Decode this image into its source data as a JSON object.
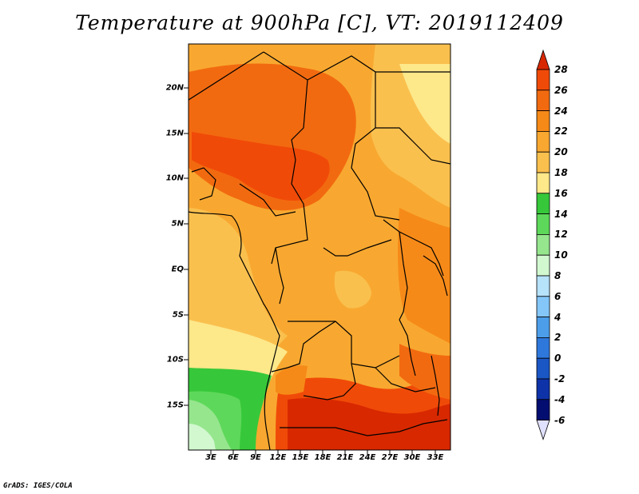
{
  "title": "Temperature at 900hPa [C], VT: 2019112409",
  "credit": "GrADS: IGES/COLA",
  "map": {
    "variable": "Temperature at 900hPa",
    "unit": "C",
    "valid_time": "2019112409",
    "region": "Central and Southern Africa",
    "lon_range": [
      0,
      35
    ],
    "lat_range": [
      -20,
      24
    ],
    "lat_ticks": [
      "20N",
      "15N",
      "10N",
      "5N",
      "EQ",
      "5S",
      "10S",
      "15S"
    ],
    "lon_ticks": [
      "3E",
      "6E",
      "9E",
      "12E",
      "15E",
      "18E",
      "21E",
      "24E",
      "27E",
      "30E",
      "33E"
    ]
  },
  "colorbar": {
    "labels": [
      "28",
      "26",
      "24",
      "22",
      "20",
      "18",
      "16",
      "14",
      "12",
      "10",
      "8",
      "6",
      "4",
      "2",
      "0",
      "-2",
      "-4",
      "-6"
    ],
    "colors": [
      "#d82800",
      "#f04a08",
      "#f26a10",
      "#f68a18",
      "#f8a830",
      "#fac04e",
      "#fde88a",
      "#36c83a",
      "#5ed85a",
      "#96e68e",
      "#d2f8d0",
      "#b6e2fa",
      "#84c6f8",
      "#4c9eea",
      "#2e78dc",
      "#1a56c4",
      "#0e32a8",
      "#040e70"
    ],
    "over_color": "#d82800",
    "under_color": "#e0e0ff"
  }
}
